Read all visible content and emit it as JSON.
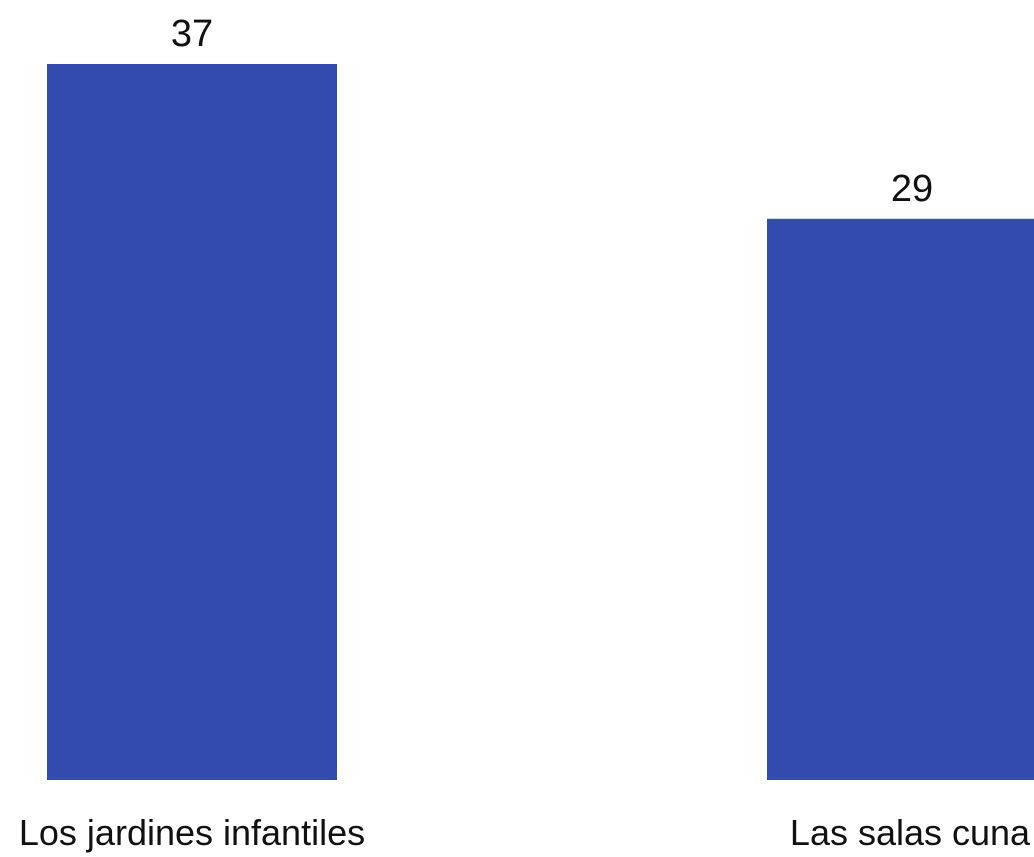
{
  "chart_data": {
    "type": "bar",
    "categories": [
      "Los jardines infantiles",
      "Las salas cuna"
    ],
    "values": [
      37,
      29
    ],
    "data_labels": [
      "37",
      "29"
    ],
    "title": "",
    "xlabel": "",
    "ylabel": "",
    "ylim": [
      0,
      37
    ],
    "grid": false,
    "legend": "none",
    "bar_color": "#334BAE"
  }
}
